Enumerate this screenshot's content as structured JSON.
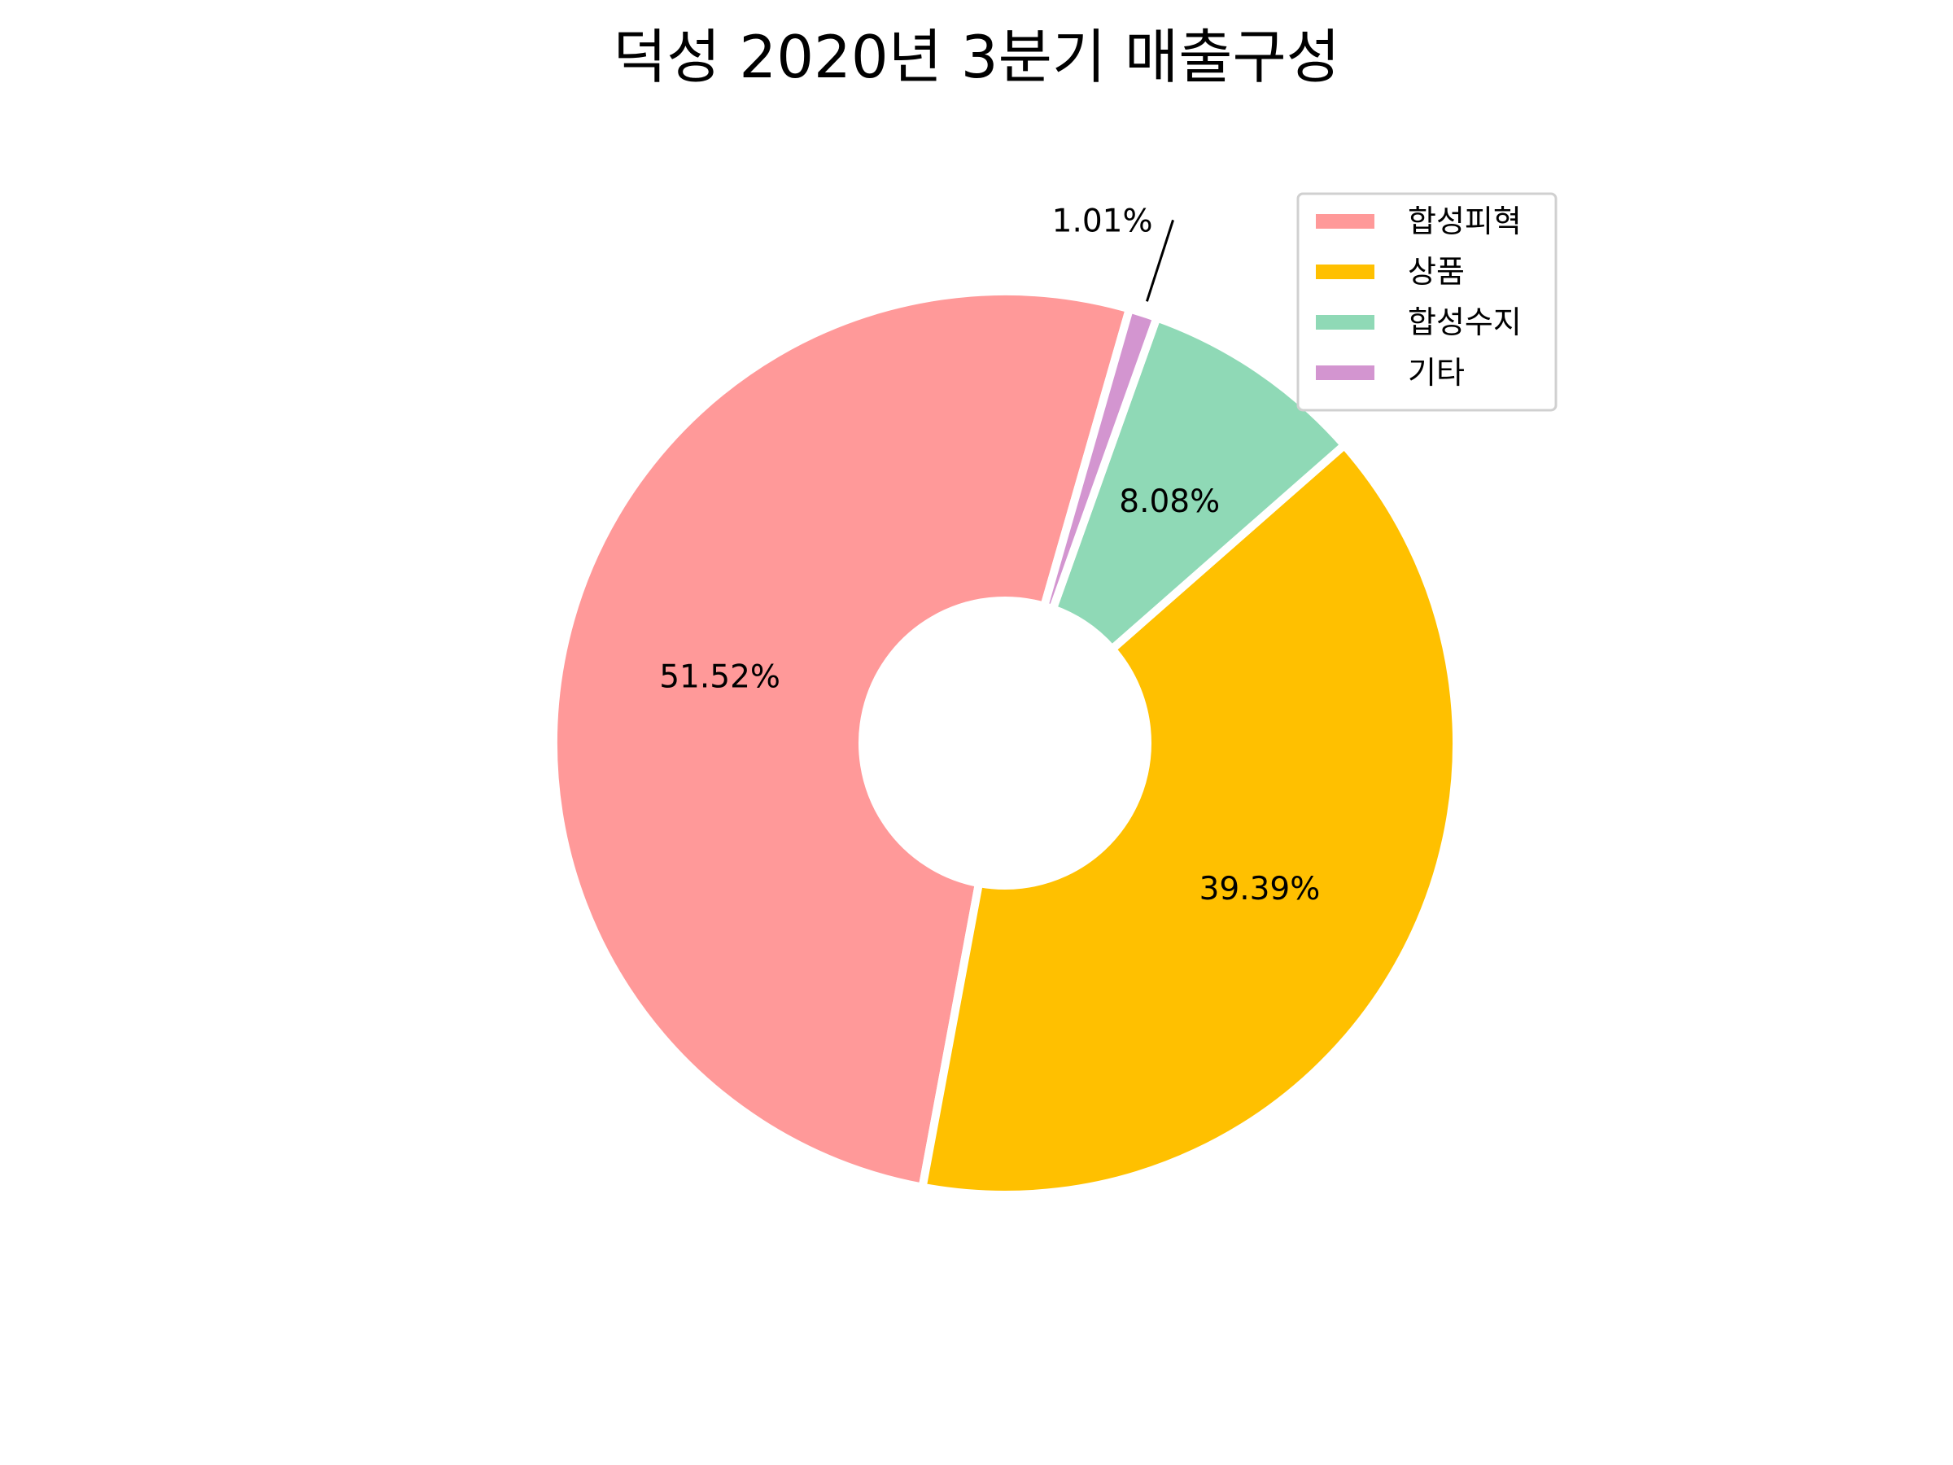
{
  "chart_data": {
    "type": "pie",
    "title": "덕성 2020년 3분기 매출구성",
    "categories": [
      "합성피혁",
      "상품",
      "합성수지",
      "기타"
    ],
    "values": [
      51.52,
      39.39,
      8.08,
      1.01
    ],
    "labels": [
      "51.52%",
      "39.39%",
      "8.08%",
      "1.01%"
    ],
    "colors": [
      "#ff9999",
      "#ffc000",
      "#8fd9b6",
      "#d395d0"
    ],
    "donut": true,
    "legend": {
      "position": "top-right",
      "entries": [
        "합성피혁",
        "상품",
        "합성수지",
        "기타"
      ]
    }
  }
}
